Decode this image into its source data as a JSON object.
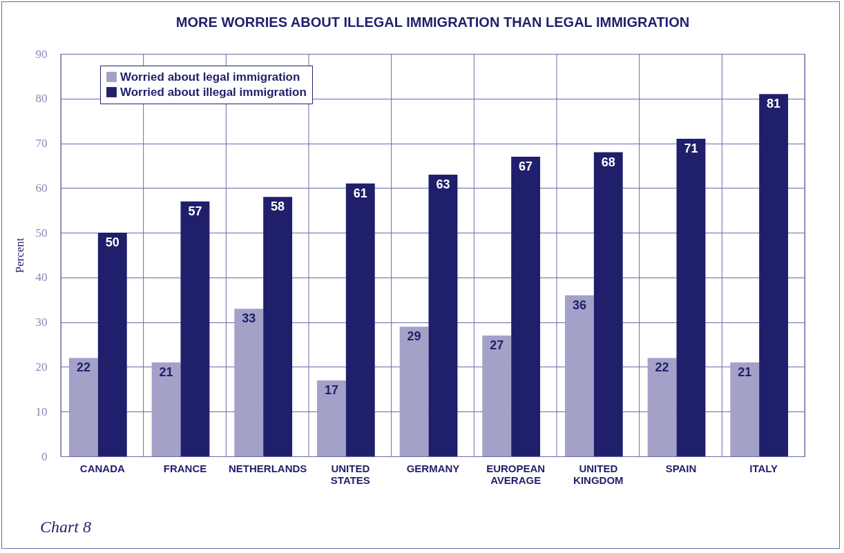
{
  "chart_data": {
    "type": "bar",
    "title": "MORE WORRIES ABOUT ILLEGAL IMMIGRATION THAN LEGAL IMMIGRATION",
    "ylabel": "Percent",
    "categories": [
      "CANADA",
      "FRANCE",
      "NETHERLANDS",
      "UNITED STATES",
      "GERMANY",
      "EUROPEAN AVERAGE",
      "UNITED KINGDOM",
      "SPAIN",
      "ITALY"
    ],
    "series": [
      {
        "name": "Worried about legal immigration",
        "color": "#a3a1c8",
        "values": [
          22,
          21,
          33,
          17,
          29,
          27,
          36,
          22,
          21
        ]
      },
      {
        "name": "Worried about illegal immigration",
        "color": "#1f1f6b",
        "values": [
          50,
          57,
          58,
          61,
          63,
          67,
          68,
          71,
          81
        ]
      }
    ],
    "ylim": [
      0,
      90
    ],
    "yticks": [
      0,
      10,
      20,
      30,
      40,
      50,
      60,
      70,
      80,
      90
    ],
    "grid": true,
    "legend": "top left",
    "data_labels": true,
    "annotations": [
      "Chart 8"
    ]
  }
}
